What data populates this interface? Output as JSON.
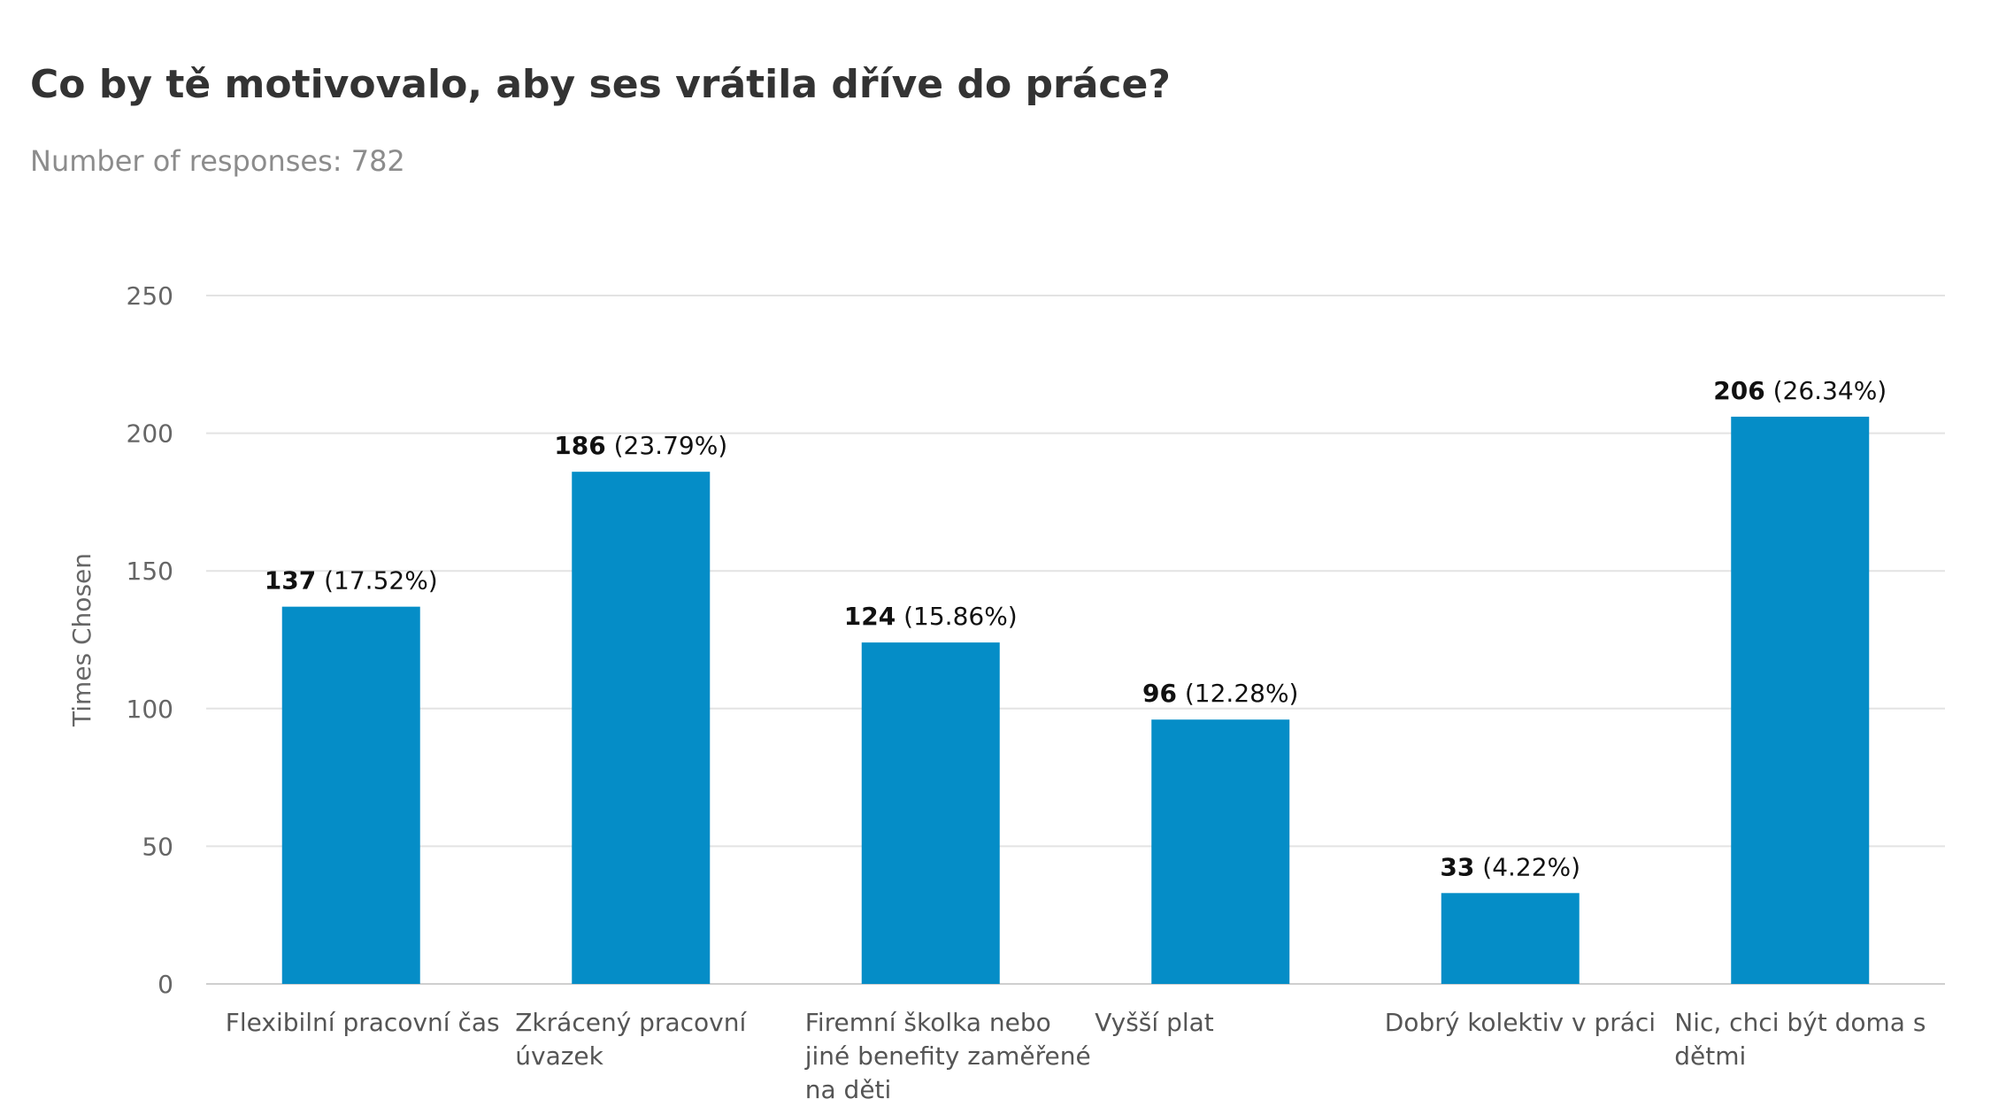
{
  "header": {
    "title": "Co by tě motivovalo, aby ses vrátila dříve do práce?",
    "subtitle": "Number of responses: 782"
  },
  "chart_data": {
    "type": "bar",
    "title": "Co by tě motivovalo, aby ses vrátila dříve do práce?",
    "subtitle": "Number of responses: 782",
    "ylabel": "Times Chosen",
    "xlabel": "",
    "ylim": [
      0,
      250
    ],
    "yticks": [
      0,
      50,
      100,
      150,
      200,
      250
    ],
    "grid": true,
    "bar_color": "#058dc7",
    "categories": [
      [
        "Flexibilní pracovní čas"
      ],
      [
        "Zkrácený pracovní",
        "úvazek"
      ],
      [
        "Firemní školka nebo",
        "jiné benefity zaměřené",
        "na děti"
      ],
      [
        "Vyšší plat"
      ],
      [
        "Dobrý kolektiv v práci"
      ],
      [
        "Nic, chci být doma s",
        "dětmi"
      ]
    ],
    "values": [
      137,
      186,
      124,
      96,
      33,
      206
    ],
    "percent_labels": [
      "(17.52%)",
      "(23.79%)",
      "(15.86%)",
      "(12.28%)",
      "(4.22%)",
      "(26.34%)"
    ]
  }
}
